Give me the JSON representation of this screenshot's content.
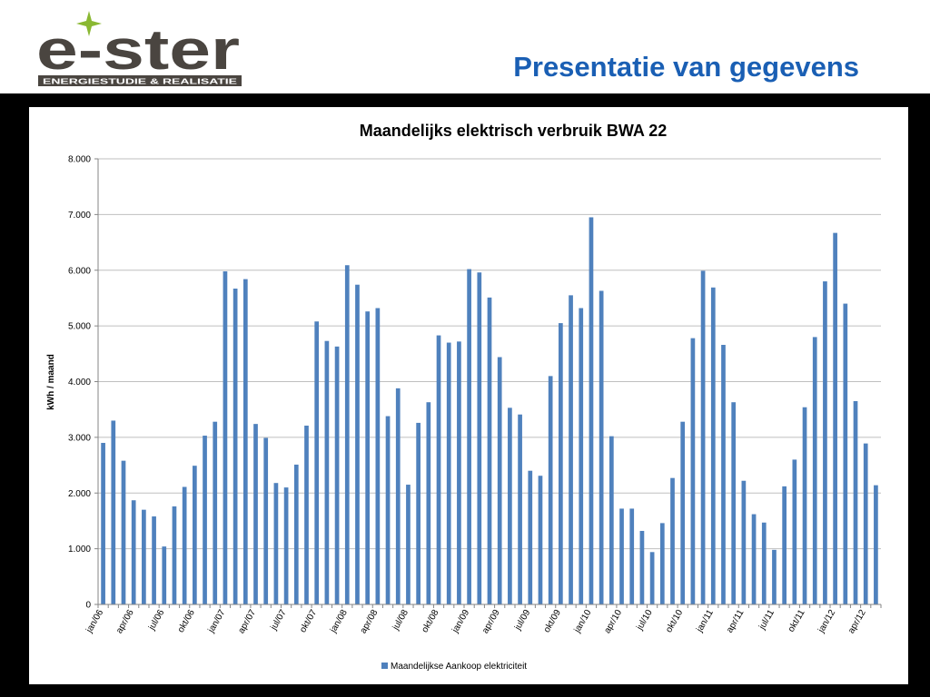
{
  "brand": {
    "name": "e-ster",
    "tagline": "ENERGIESTUDIE & REALISATIE",
    "logo_dark": "#4a4540",
    "logo_green": "#8ab832"
  },
  "slide": {
    "title": "Presentatie van gegevens",
    "title_color": "#1a5fb4"
  },
  "chart_data": {
    "type": "bar",
    "title": "Maandelijks elektrisch verbruik BWA 22",
    "ylabel": "kWh / maand",
    "xlabel": "",
    "ylim": [
      0,
      8000
    ],
    "yticks": [
      0,
      1000,
      2000,
      3000,
      4000,
      5000,
      6000,
      7000,
      8000
    ],
    "ytick_labels": [
      "0",
      "1.000",
      "2.000",
      "3.000",
      "4.000",
      "5.000",
      "6.000",
      "7.000",
      "8.000"
    ],
    "xtick_labels": [
      "jan/06",
      "apr/06",
      "jul/06",
      "okt/06",
      "jan/07",
      "apr/07",
      "jul/07",
      "okt/07",
      "jan/08",
      "apr/08",
      "jul/08",
      "okt/08",
      "jan/09",
      "apr/09",
      "jul/09",
      "okt/09",
      "jan/10",
      "apr/10",
      "jul/10",
      "okt/10",
      "jan/11",
      "apr/11",
      "jul/11",
      "okt/11",
      "jan/12",
      "apr/12"
    ],
    "grid": true,
    "legend_position": "bottom",
    "bar_color": "#4f81bd",
    "series": [
      {
        "name": "Maandelijkse Aankoop elektriciteit",
        "values": [
          2900,
          3300,
          2580,
          1870,
          1700,
          1580,
          1040,
          1760,
          2110,
          2490,
          3030,
          3280,
          5980,
          5670,
          5840,
          3240,
          2990,
          2180,
          2100,
          2510,
          3210,
          5080,
          4730,
          4630,
          6090,
          5740,
          5260,
          5320,
          3380,
          3880,
          2150,
          3260,
          3630,
          4830,
          4700,
          4720,
          6020,
          5960,
          5510,
          4440,
          3530,
          3410,
          2400,
          2310,
          4100,
          5050,
          5550,
          5320,
          6950,
          5630,
          3020,
          1720,
          1720,
          1320,
          940,
          1460,
          2270,
          3280,
          4780,
          5990,
          5690,
          4660,
          3630,
          2220,
          1620,
          1470,
          980,
          2120,
          2600,
          3540,
          4800,
          5800,
          6670,
          5400,
          3650,
          2890,
          2140
        ]
      }
    ]
  }
}
